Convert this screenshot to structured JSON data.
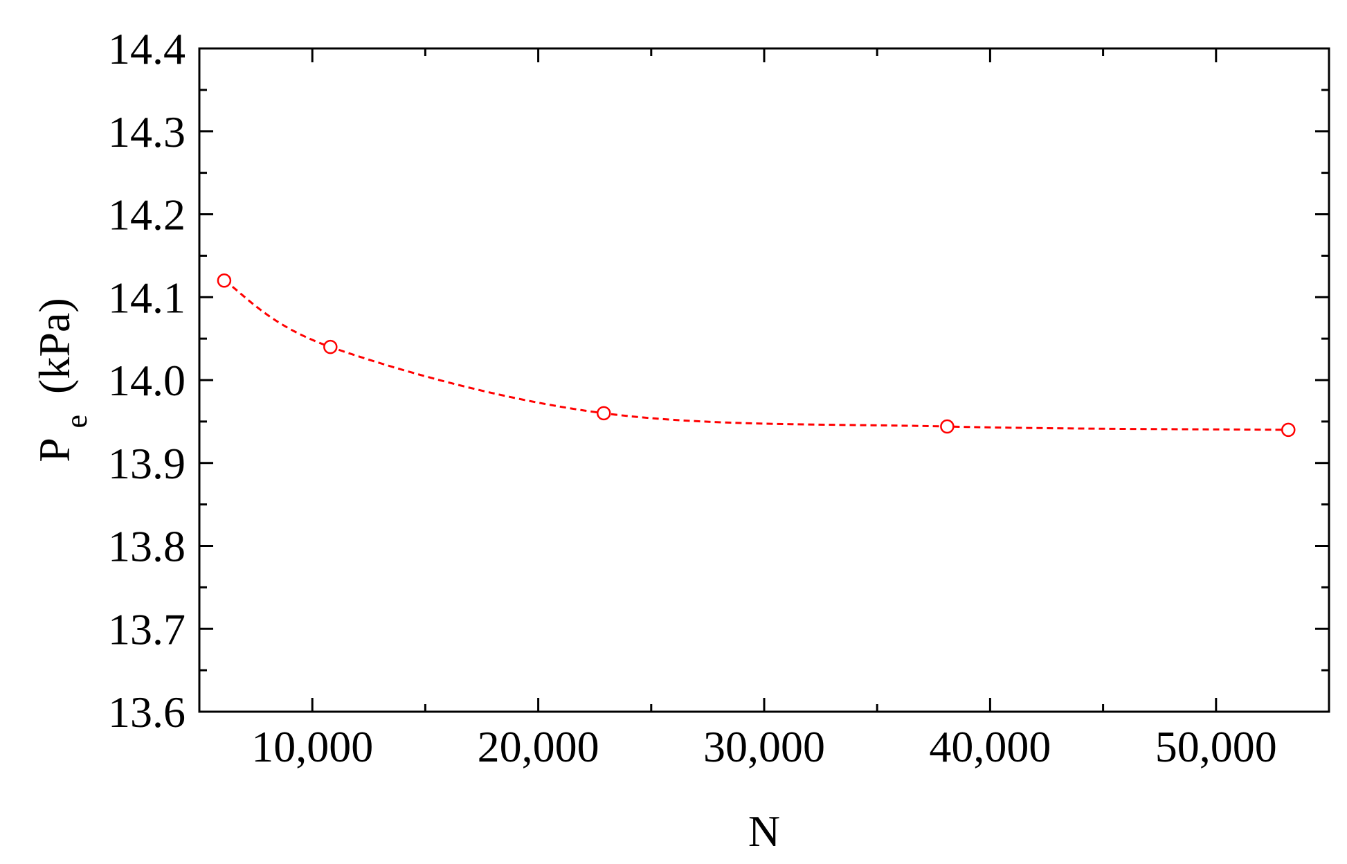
{
  "chart_data": {
    "type": "line",
    "title": "",
    "xlabel": "N",
    "ylabel": {
      "main": "P",
      "subscript": "e",
      "unit": "(kPa)"
    },
    "xlim": [
      5000,
      55000
    ],
    "ylim": [
      13.6,
      14.4
    ],
    "x_ticks": [
      10000,
      20000,
      30000,
      40000,
      50000
    ],
    "x_tick_labels": [
      "10,000",
      "20,000",
      "30,000",
      "40,000",
      "50,000"
    ],
    "x_minor_ticks": [
      15000,
      25000,
      35000,
      45000
    ],
    "y_ticks": [
      13.6,
      13.7,
      13.8,
      13.9,
      14.0,
      14.1,
      14.2,
      14.3,
      14.4
    ],
    "y_tick_labels": [
      "13.6",
      "13.7",
      "13.8",
      "13.9",
      "14.0",
      "14.1",
      "14.2",
      "14.3",
      "14.4"
    ],
    "grid": false,
    "legend": "none",
    "series": [
      {
        "name": "",
        "color": "#ff0000",
        "line_style": "dashed",
        "marker": "open-circle",
        "x": [
          6100,
          10800,
          22900,
          38100,
          53200
        ],
        "y": [
          14.12,
          14.04,
          13.96,
          13.944,
          13.94
        ]
      }
    ]
  }
}
